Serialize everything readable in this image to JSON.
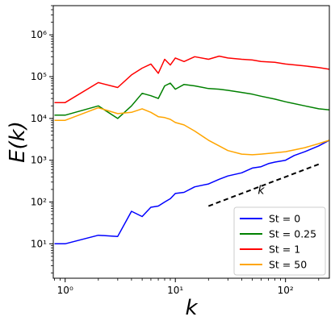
{
  "chart_data": {
    "type": "line",
    "xlabel": "k",
    "ylabel": "E(k)",
    "xscale": "log",
    "yscale": "log",
    "xlim": [
      0.78,
      250
    ],
    "ylim": [
      1.5,
      5000000
    ],
    "grid": false,
    "legend_placement": "lower-right",
    "x_ticks": [
      {
        "value": 1,
        "label": "10⁰"
      },
      {
        "value": 10,
        "label": "10¹"
      },
      {
        "value": 100,
        "label": "10²"
      }
    ],
    "y_ticks": [
      {
        "value": 10,
        "label": "10¹"
      },
      {
        "value": 100,
        "label": "10²"
      },
      {
        "value": 1000,
        "label": "10³"
      },
      {
        "value": 10000,
        "label": "10⁴"
      },
      {
        "value": 100000,
        "label": "10⁵"
      },
      {
        "value": 1000000,
        "label": "10⁶"
      }
    ],
    "series": [
      {
        "name": "St = 0",
        "color": "#0000ff",
        "x": [
          0.8,
          1,
          2,
          3,
          4,
          5,
          6,
          7,
          8,
          9,
          10,
          12,
          15,
          20,
          25,
          30,
          40,
          50,
          60,
          70,
          80,
          100,
          120,
          150,
          200,
          250
        ],
        "y": [
          10,
          10,
          16,
          15,
          60,
          45,
          75,
          80,
          100,
          120,
          160,
          170,
          230,
          270,
          350,
          420,
          500,
          650,
          700,
          830,
          900,
          1000,
          1300,
          1600,
          2200,
          3000
        ]
      },
      {
        "name": "St = 0.25",
        "color": "#008000",
        "x": [
          0.8,
          1,
          2,
          3,
          4,
          5,
          6,
          7,
          8,
          9,
          10,
          12,
          15,
          20,
          25,
          30,
          40,
          50,
          60,
          80,
          100,
          150,
          200,
          250
        ],
        "y": [
          12000,
          12000,
          20000,
          10000,
          20000,
          40000,
          35000,
          30000,
          60000,
          70000,
          50000,
          65000,
          60000,
          52000,
          50000,
          47000,
          42000,
          38000,
          34000,
          29000,
          25000,
          20000,
          17000,
          16000
        ]
      },
      {
        "name": "St = 1",
        "color": "#ff0000",
        "x": [
          0.8,
          1,
          2,
          3,
          4,
          5,
          6,
          7,
          8,
          9,
          10,
          12,
          15,
          20,
          25,
          30,
          40,
          50,
          60,
          80,
          100,
          150,
          200,
          250
        ],
        "y": [
          24000,
          24000,
          72000,
          55000,
          110000,
          160000,
          200000,
          120000,
          260000,
          190000,
          280000,
          230000,
          300000,
          260000,
          310000,
          280000,
          260000,
          250000,
          230000,
          220000,
          200000,
          180000,
          165000,
          150000
        ]
      },
      {
        "name": "St = 50",
        "color": "#ffa500",
        "x": [
          0.8,
          1,
          2,
          3,
          4,
          5,
          6,
          7,
          8,
          9,
          10,
          12,
          15,
          20,
          25,
          30,
          40,
          50,
          60,
          80,
          100,
          150,
          200,
          250
        ],
        "y": [
          9000,
          9000,
          18000,
          13000,
          14000,
          17000,
          14000,
          11000,
          10500,
          9500,
          8000,
          7000,
          5000,
          3000,
          2200,
          1700,
          1400,
          1350,
          1400,
          1500,
          1600,
          2000,
          2500,
          3000
        ]
      }
    ],
    "reference_line": {
      "label": "k",
      "x": [
        20,
        200
      ],
      "y": [
        80,
        800
      ],
      "style": "dashed",
      "color": "#000000"
    }
  }
}
